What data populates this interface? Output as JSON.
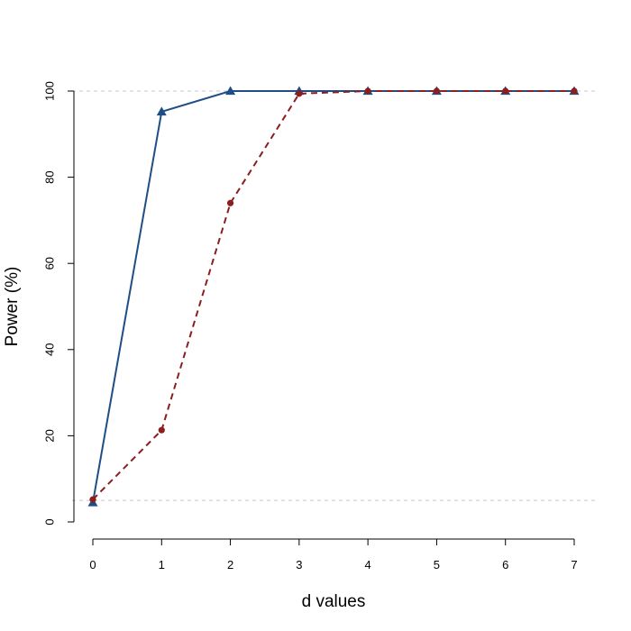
{
  "chart_data": {
    "type": "line",
    "xlabel": "d values",
    "ylabel": "Power (%)",
    "xlim": [
      0,
      7
    ],
    "ylim": [
      0,
      100
    ],
    "x_ticks": [
      0,
      1,
      2,
      3,
      4,
      5,
      6,
      7
    ],
    "y_ticks": [
      0,
      20,
      40,
      60,
      80,
      100
    ],
    "reference_lines_y": [
      100,
      5
    ],
    "grid": false,
    "legend": "none",
    "series": [
      {
        "x": [
          0,
          1,
          2,
          3,
          4,
          5,
          6,
          7
        ],
        "values": [
          4.5,
          95.2,
          100,
          100,
          100,
          100,
          100,
          100
        ],
        "color": "#1f4e86",
        "line_style": "solid",
        "marker": "triangle"
      },
      {
        "x": [
          0,
          1,
          2,
          3,
          4,
          5,
          6,
          7
        ],
        "values": [
          5.2,
          21.3,
          74.0,
          99.4,
          100,
          100,
          100,
          100
        ],
        "color": "#8b1e1e",
        "line_style": "dashed",
        "marker": "circle"
      }
    ]
  }
}
